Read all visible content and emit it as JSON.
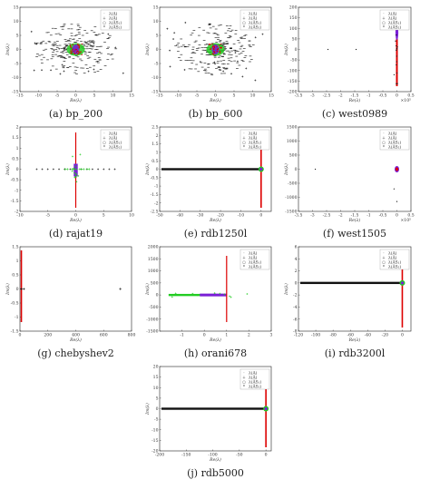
{
  "figure": {
    "panels": [
      {
        "caption": "(a) bp_200",
        "xlabel": "Re(λ)",
        "ylabel": "Im(λ)",
        "xlim": [
          -15,
          15
        ],
        "ylim": [
          -15,
          15
        ],
        "xticks": [
          "-15",
          "-10",
          "-5",
          "0",
          "5",
          "10",
          "15"
        ],
        "yticks": [
          "-15",
          "-10",
          "-5",
          "0",
          "5",
          "10",
          "15"
        ],
        "xscale": "",
        "legend": "top-right",
        "legend_entries": [
          "λ(A)",
          "λ(Â)",
          "λ(ÂS₁)",
          "λ(ÂS₂)"
        ],
        "pattern": "cloud"
      },
      {
        "caption": "(b) bp_600",
        "xlabel": "Re(λ)",
        "ylabel": "Im(λ)",
        "xlim": [
          -15,
          15
        ],
        "ylim": [
          -15,
          15
        ],
        "xticks": [
          "-15",
          "-10",
          "-5",
          "0",
          "5",
          "10",
          "15"
        ],
        "yticks": [
          "-15",
          "-10",
          "-5",
          "0",
          "5",
          "10",
          "15"
        ],
        "xscale": "",
        "legend": "top-right",
        "legend_entries": [
          "λ(A)",
          "λ(Â)",
          "λ(ÂS₁)",
          "λ(ÂS₂)"
        ],
        "pattern": "cloud"
      },
      {
        "caption": "(c) west0989",
        "xlabel": "Re(λ)",
        "ylabel": "Im(λ)",
        "xlim": [
          -3.5,
          0.5
        ],
        "ylim": [
          -200,
          200
        ],
        "xticks": [
          "-3.5",
          "-3",
          "-2.5",
          "-2",
          "-1.5",
          "-1",
          "-0.5",
          "0",
          "0.5"
        ],
        "yticks": [
          "-200",
          "-150",
          "-100",
          "-50",
          "0",
          "50",
          "100",
          "150",
          "200"
        ],
        "xscale": "×10⁵",
        "legend": "top-right",
        "legend_entries": [
          "λ(A)",
          "λ(Â)",
          "λ(ÂS₁)",
          "λ(ÂS₂)"
        ],
        "pattern": "vline-right"
      },
      {
        "caption": "(d) rajat19",
        "xlabel": "Re(λ)",
        "ylabel": "Im(λ)",
        "xlim": [
          -10,
          10
        ],
        "ylim": [
          -2,
          2
        ],
        "xticks": [
          "-10",
          "-5",
          "0",
          "5",
          "10"
        ],
        "yticks": [
          "-2",
          "-1.5",
          "-1",
          "-0.5",
          "0",
          "0.5",
          "1",
          "1.5",
          "2"
        ],
        "xscale": "",
        "legend": "top-right",
        "legend_entries": [
          "λ(A)",
          "λ(Â)",
          "λ(ÂS₁)",
          "λ(ÂS₂)"
        ],
        "pattern": "cross"
      },
      {
        "caption": "(e) rdb1250l",
        "xlabel": "Re(λ)",
        "ylabel": "Im(λ)",
        "xlim": [
          -50,
          5
        ],
        "ylim": [
          -2.5,
          2.5
        ],
        "xticks": [
          "-50",
          "-40",
          "-30",
          "-20",
          "-10",
          "0"
        ],
        "yticks": [
          "-2.5",
          "-2",
          "-1.5",
          "-1",
          "-0.5",
          "0",
          "0.5",
          "1",
          "1.5",
          "2",
          "2.5"
        ],
        "xscale": "",
        "legend": "top-right",
        "legend_entries": [
          "λ(A)",
          "λ(Â)",
          "λ(ÂS₁)",
          "λ(ÂS₂)"
        ],
        "pattern": "hline-right"
      },
      {
        "caption": "(f) west1505",
        "xlabel": "Re(λ)",
        "ylabel": "Im(λ)",
        "xlim": [
          -3.5,
          0.5
        ],
        "ylim": [
          -1500,
          1500
        ],
        "xticks": [
          "-3.5",
          "-3",
          "-2.5",
          "-2",
          "-1.5",
          "-1",
          "-0.5",
          "0",
          "0.5"
        ],
        "yticks": [
          "-1500",
          "-1000",
          "-500",
          "0",
          "500",
          "1000",
          "1500"
        ],
        "xscale": "×10⁵",
        "legend": "top-right",
        "legend_entries": [
          "λ(A)",
          "λ(Â)",
          "λ(ÂS₁)",
          "λ(ÂS₂)"
        ],
        "pattern": "blob"
      },
      {
        "caption": "(g) chebyshev2",
        "xlabel": "Re(λ)",
        "ylabel": "Im(λ)",
        "xlim": [
          0,
          800
        ],
        "ylim": [
          -1.5,
          1.5
        ],
        "xticks": [
          "0",
          "200",
          "400",
          "600",
          "800"
        ],
        "yticks": [
          "-1.5",
          "-1",
          "-0.5",
          "0",
          "0.5",
          "1",
          "1.5"
        ],
        "xscale": "",
        "legend": "",
        "legend_entries": [],
        "pattern": "vline-left"
      },
      {
        "caption": "(h) orani678",
        "xlabel": "Re(λ)",
        "ylabel": "Im(λ)",
        "xlim": [
          -2,
          3
        ],
        "ylim": [
          -1500,
          2000
        ],
        "xticks": [
          "-1",
          "0",
          "1",
          "2",
          "3"
        ],
        "yticks": [
          "-1500",
          "-1000",
          "-500",
          "0",
          "500",
          "1000",
          "1500",
          "2000"
        ],
        "xscale": "",
        "legend": "top-right",
        "legend_entries": [
          "λ(A)",
          "λ(Â)",
          "λ(ÂS₁)",
          "λ(ÂS₂)"
        ],
        "pattern": "orani"
      },
      {
        "caption": "(i) rdb3200l",
        "xlabel": "Re(λ)",
        "ylabel": "Im(λ)",
        "xlim": [
          -120,
          10
        ],
        "ylim": [
          -8,
          6
        ],
        "xticks": [
          "-120",
          "-100",
          "-80",
          "-60",
          "-40",
          "-20",
          "0"
        ],
        "yticks": [
          "-8",
          "-6",
          "-4",
          "-2",
          "0",
          "2",
          "4",
          "6"
        ],
        "xscale": "",
        "legend": "top-right",
        "legend_entries": [
          "λ(A)",
          "λ(Â)",
          "λ(ÂS₁)",
          "λ(ÂS₂)"
        ],
        "pattern": "hline-right"
      },
      {
        "caption": "(j) rdb5000",
        "xlabel": "Re(λ)",
        "ylabel": "Im(λ)",
        "xlim": [
          -200,
          10
        ],
        "ylim": [
          -20,
          20
        ],
        "xticks": [
          "-200",
          "-150",
          "-100",
          "-50",
          "0"
        ],
        "yticks": [
          "-20",
          "-15",
          "-10",
          "-5",
          "0",
          "5",
          "10",
          "15",
          "20"
        ],
        "xscale": "",
        "legend": "top-right",
        "legend_entries": [
          "λ(A)",
          "λ(Â)",
          "λ(ÂS₁)",
          "λ(ÂS₂)"
        ],
        "pattern": "hline-right"
      }
    ]
  },
  "chart_data": {
    "type": "scatter",
    "series_styles": [
      {
        "marker": "·",
        "color": "#000000"
      },
      {
        "marker": "+",
        "color": "#00cc00"
      },
      {
        "marker": "○",
        "color": "#0000cc"
      },
      {
        "marker": "*",
        "color": "#dd0000"
      }
    ]
  }
}
